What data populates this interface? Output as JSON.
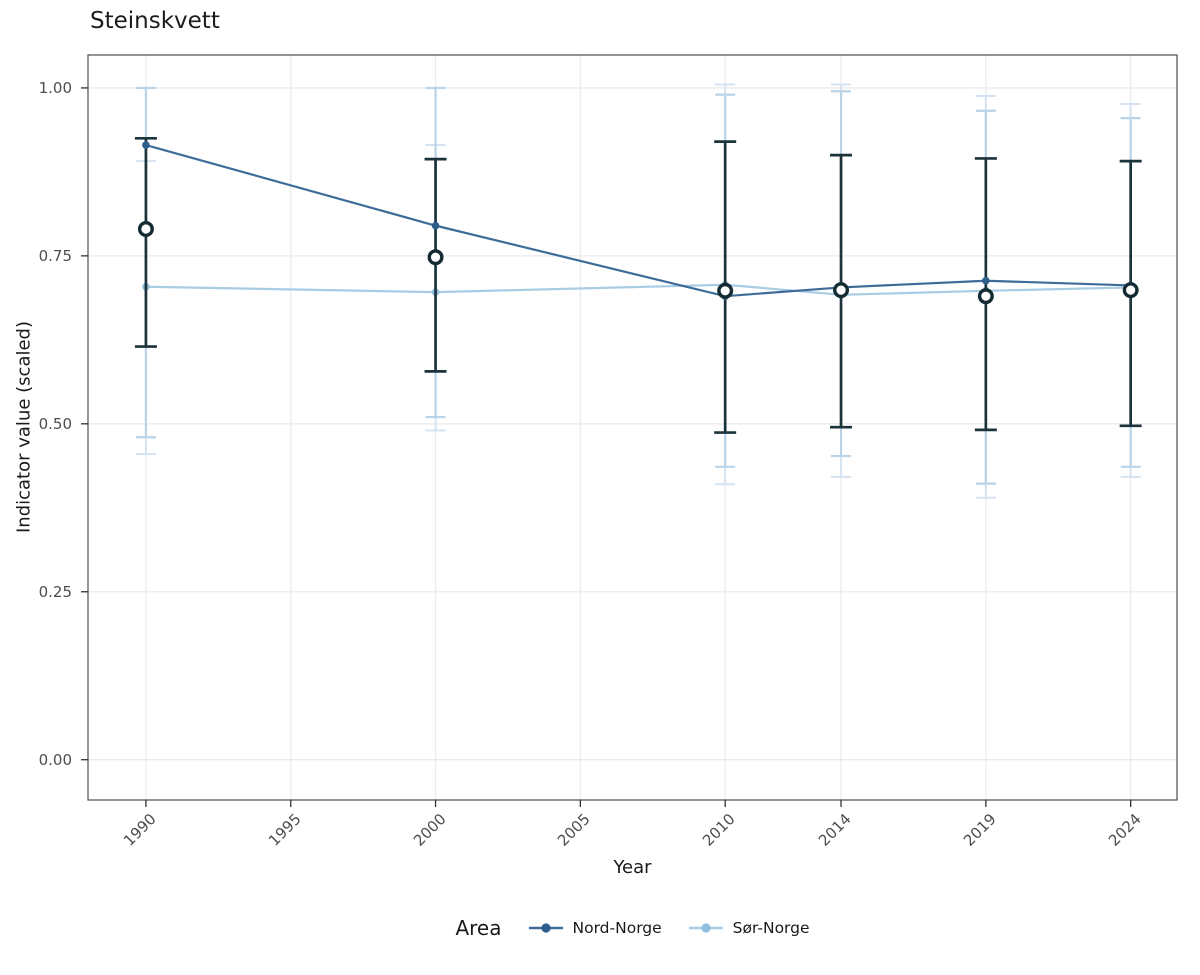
{
  "chart_data": {
    "type": "line",
    "title": "Steinskvett",
    "xlabel": "Year",
    "ylabel": "Indicator value (scaled)",
    "legend_title": "Area",
    "legend_position": "bottom",
    "grid": true,
    "x_ticks": [
      1990,
      1995,
      2000,
      2005,
      2010,
      2014,
      2019,
      2024
    ],
    "y_ticks": [
      0.0,
      0.25,
      0.5,
      0.75,
      1.0
    ],
    "xlim": [
      1988.0,
      2025.6
    ],
    "ylim": [
      -0.06,
      1.049
    ],
    "colors": {
      "grid": "#EBEBEB",
      "panel_border": "#4D4D4D",
      "tick_mark": "#333333",
      "tick_text": "#4D4D4D",
      "black_errorbar": "#1B333B",
      "open_circle_ring": "#142B33",
      "open_circle_fill": "#FFFFFF",
      "sor_bar_inner": "#B9D3E8",
      "sor_bar_outer": "#D5E3F1"
    },
    "series": [
      {
        "name": "Nord-Norge",
        "color": "#3E6C99",
        "dot_color": "#2D5E8C",
        "x": [
          1990,
          2000,
          2010,
          2014,
          2019,
          2024
        ],
        "y": [
          0.915,
          0.795,
          0.69,
          0.703,
          0.713,
          0.706
        ],
        "errorbar": {
          "color": "#1B333B",
          "low": [
            0.615,
            0.578,
            0.487,
            0.495,
            0.491,
            0.497
          ],
          "high": [
            0.925,
            0.894,
            0.92,
            0.9,
            0.895,
            0.891
          ]
        }
      },
      {
        "name": "Sør-Norge",
        "color": "#A8CCE4",
        "dot_color": "#90BFDC",
        "x": [
          1990,
          2000,
          2010,
          2014,
          2019,
          2024
        ],
        "y": [
          0.704,
          0.696,
          0.707,
          0.692,
          0.698,
          0.703
        ],
        "errorbar_inner": {
          "color": "#B9D3E8",
          "low": [
            0.48,
            0.51,
            0.436,
            0.452,
            0.411,
            0.436
          ],
          "high": [
            1.0,
            1.0,
            0.99,
            0.995,
            0.966,
            0.955
          ]
        },
        "errorbar_outer": {
          "color": "#D5E3F1",
          "low": [
            0.455,
            0.49,
            0.41,
            0.421,
            0.39,
            0.421
          ],
          "high": [
            0.891,
            0.915,
            1.005,
            1.005,
            0.988,
            0.976
          ]
        }
      }
    ],
    "open_circles": {
      "x": [
        1990,
        2000,
        2010,
        2014,
        2019,
        2024
      ],
      "y": [
        0.79,
        0.748,
        0.698,
        0.699,
        0.69,
        0.699
      ]
    }
  }
}
